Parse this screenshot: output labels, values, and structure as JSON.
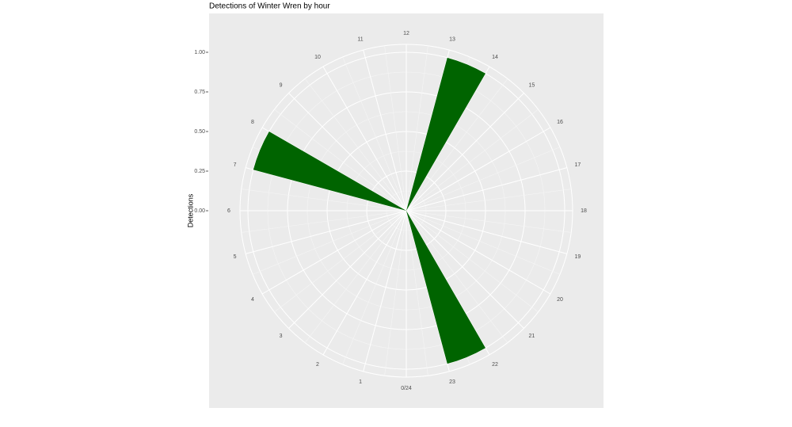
{
  "chart_data": {
    "type": "polar-bar",
    "title": "Detections of Winter Wren by hour",
    "y_label": "Detections",
    "categories": [
      "0/24",
      "1",
      "2",
      "3",
      "4",
      "5",
      "6",
      "7",
      "8",
      "9",
      "10",
      "11",
      "12",
      "13",
      "14",
      "15",
      "16",
      "17",
      "18",
      "19",
      "20",
      "21",
      "22",
      "23"
    ],
    "values": [
      0,
      0,
      0,
      0,
      0,
      0,
      0,
      1,
      0,
      0,
      0,
      0,
      0,
      1,
      0,
      0,
      0,
      0,
      0,
      0,
      0,
      0,
      1,
      0
    ],
    "color": "#006400",
    "ylim": [
      0,
      1.05
    ],
    "yticks": [
      {
        "value": 0,
        "label": "0.00"
      },
      {
        "value": 0.25,
        "label": "0.25"
      },
      {
        "value": 0.5,
        "label": "0.50"
      },
      {
        "value": 0.75,
        "label": "0.75"
      },
      {
        "value": 1,
        "label": "1.00"
      }
    ],
    "grid": true
  }
}
